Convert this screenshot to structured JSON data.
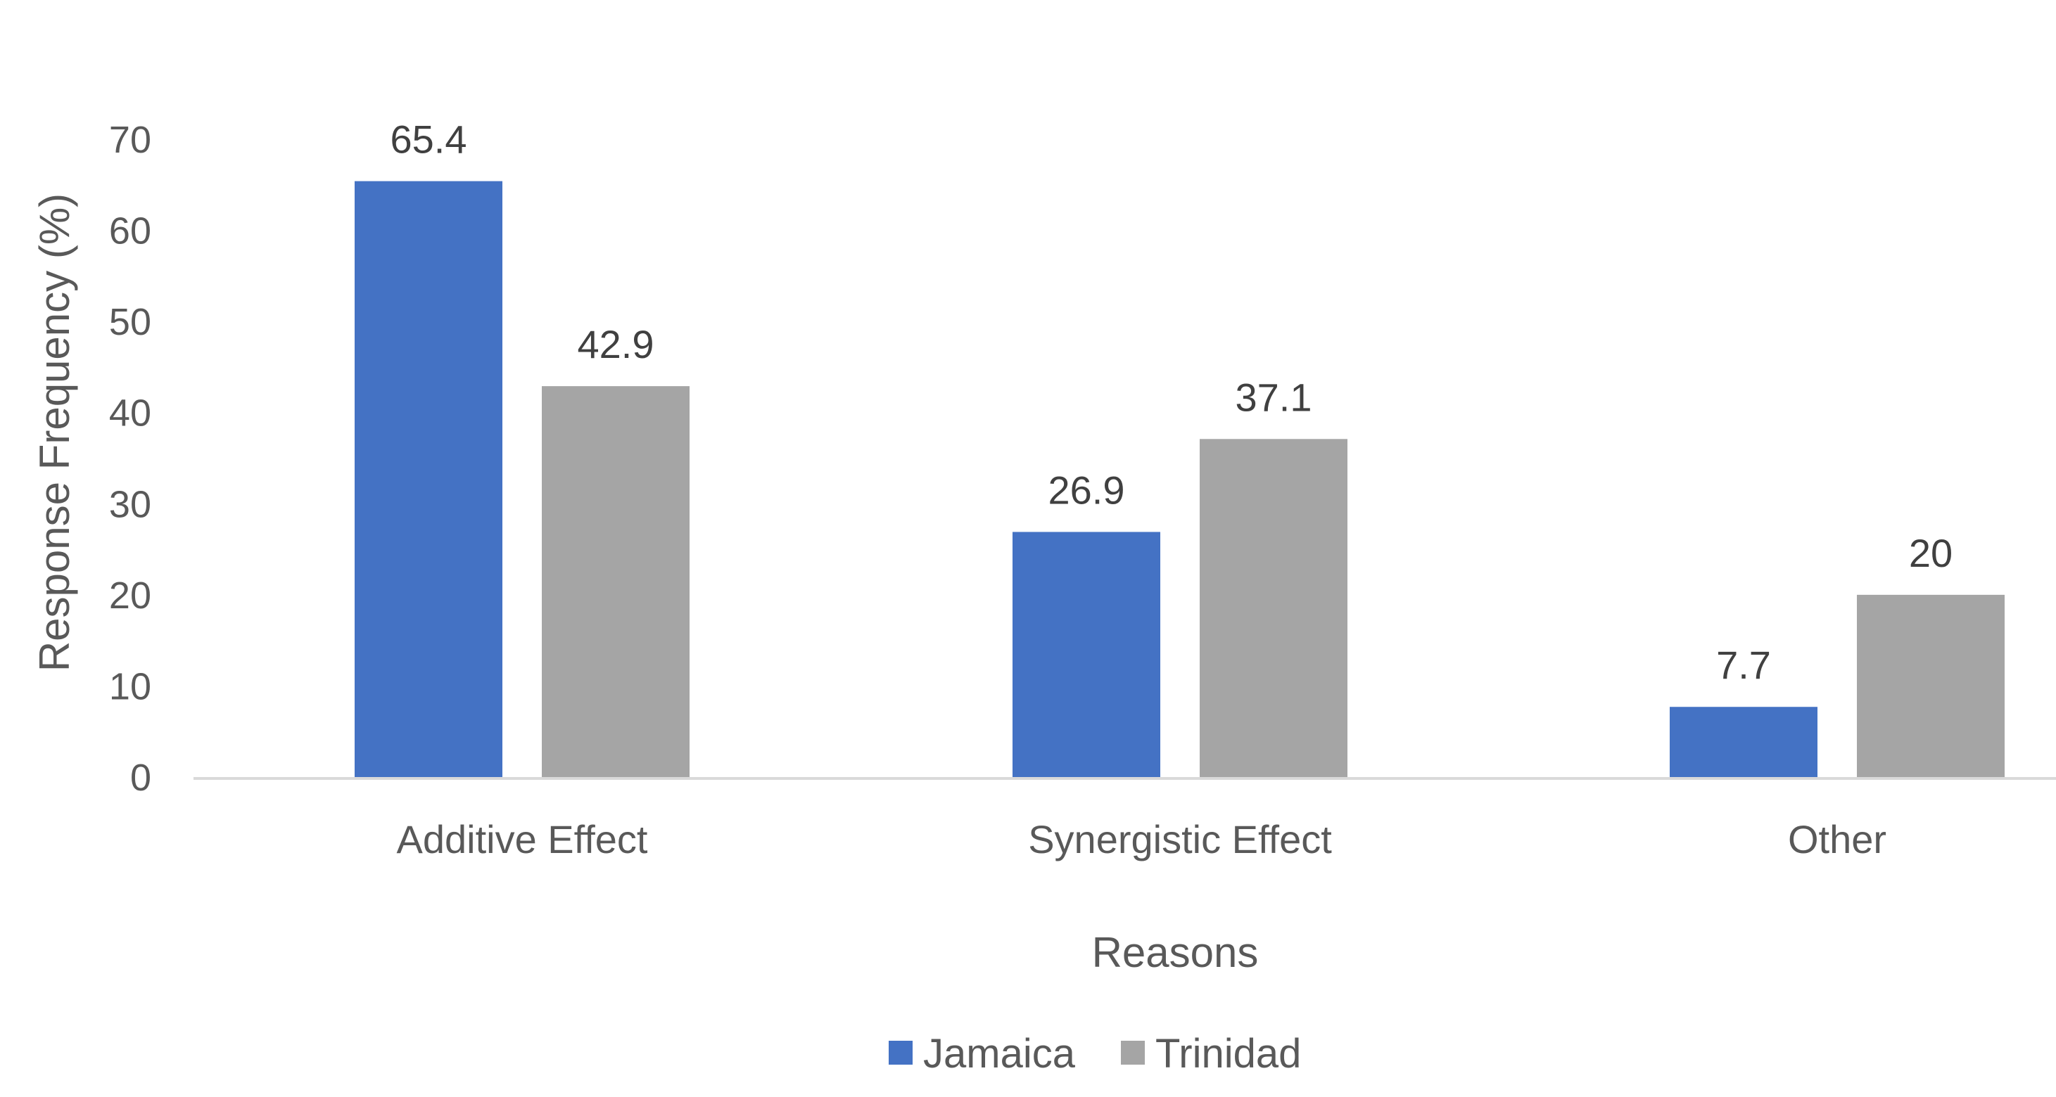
{
  "chart_data": {
    "type": "bar",
    "title": "",
    "categories": [
      "Additive Effect",
      "Synergistic Effect",
      "Other"
    ],
    "series": [
      {
        "name": "Jamaica",
        "values": [
          65.4,
          26.9,
          7.7
        ],
        "labels": [
          "65.4",
          "26.9",
          "7.7"
        ],
        "color": "#4472C4"
      },
      {
        "name": "Trinidad",
        "values": [
          42.9,
          37.1,
          20
        ],
        "labels": [
          "42.9",
          "37.1",
          "20"
        ],
        "color": "#A5A5A5"
      }
    ],
    "xlabel": "Reasons",
    "ylabel": "Response Frequency (%)",
    "ylim": [
      0,
      70
    ],
    "yticks": [
      0,
      10,
      20,
      30,
      40,
      50,
      60,
      70
    ],
    "grid": false,
    "legend": "bottom-center",
    "axis_color": "#D9D9D9"
  }
}
